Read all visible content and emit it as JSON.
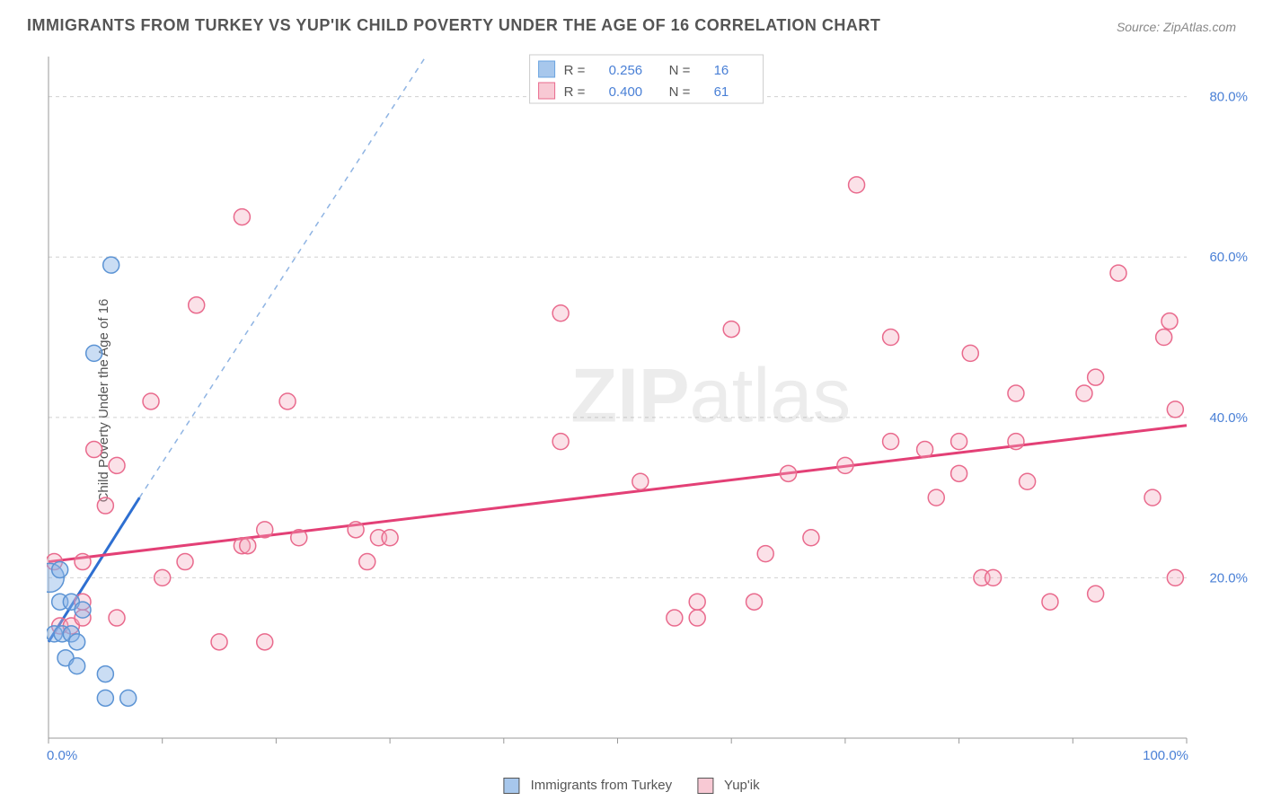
{
  "title": "IMMIGRANTS FROM TURKEY VS YUP'IK CHILD POVERTY UNDER THE AGE OF 16 CORRELATION CHART",
  "source": "Source: ZipAtlas.com",
  "y_axis_label": "Child Poverty Under the Age of 16",
  "watermark_bold": "ZIP",
  "watermark_light": "atlas",
  "chart": {
    "type": "scatter",
    "xlim": [
      0,
      100
    ],
    "ylim": [
      0,
      85
    ],
    "x_ticks": [
      0,
      100
    ],
    "x_tick_labels": [
      "0.0%",
      "100.0%"
    ],
    "x_minor_tick_step": 10,
    "y_ticks": [
      20,
      40,
      60,
      80
    ],
    "y_tick_labels": [
      "20.0%",
      "40.0%",
      "60.0%",
      "80.0%"
    ],
    "grid_color": "#d0d0d0",
    "axis_color": "#999999",
    "background_color": "#ffffff",
    "marker_radius": 9,
    "marker_radius_large": 16
  },
  "series": [
    {
      "name": "Immigrants from Turkey",
      "color_fill": "rgba(137,180,231,0.45)",
      "color_stroke": "#5b93d4",
      "R": "0.256",
      "N": "16",
      "regression": {
        "x1": 0,
        "y1": 12,
        "x2": 8,
        "y2": 30,
        "extrap_x2": 40,
        "extrap_y2": 100
      },
      "points": [
        {
          "x": 0.1,
          "y": 20,
          "r": 16
        },
        {
          "x": 1.0,
          "y": 21
        },
        {
          "x": 0.5,
          "y": 13
        },
        {
          "x": 1.2,
          "y": 13
        },
        {
          "x": 2.0,
          "y": 13
        },
        {
          "x": 2.5,
          "y": 12
        },
        {
          "x": 1.0,
          "y": 17
        },
        {
          "x": 2.0,
          "y": 17
        },
        {
          "x": 3.0,
          "y": 16
        },
        {
          "x": 1.5,
          "y": 10
        },
        {
          "x": 2.5,
          "y": 9
        },
        {
          "x": 5.0,
          "y": 8
        },
        {
          "x": 5.0,
          "y": 5
        },
        {
          "x": 7.0,
          "y": 5
        },
        {
          "x": 4.0,
          "y": 48
        },
        {
          "x": 5.5,
          "y": 59
        }
      ]
    },
    {
      "name": "Yup'ik",
      "color_fill": "rgba(244,170,190,0.35)",
      "color_stroke": "#e96a8d",
      "R": "0.400",
      "N": "61",
      "regression": {
        "x1": 0,
        "y1": 22,
        "x2": 100,
        "y2": 39
      },
      "points": [
        {
          "x": 0.5,
          "y": 22
        },
        {
          "x": 1.0,
          "y": 14
        },
        {
          "x": 2.0,
          "y": 14
        },
        {
          "x": 3.0,
          "y": 15
        },
        {
          "x": 3.0,
          "y": 17
        },
        {
          "x": 3.0,
          "y": 22
        },
        {
          "x": 4.0,
          "y": 36
        },
        {
          "x": 5.0,
          "y": 29
        },
        {
          "x": 6.0,
          "y": 34
        },
        {
          "x": 6.0,
          "y": 15
        },
        {
          "x": 9.0,
          "y": 42
        },
        {
          "x": 10.0,
          "y": 20
        },
        {
          "x": 12.0,
          "y": 22
        },
        {
          "x": 13.0,
          "y": 54
        },
        {
          "x": 15.0,
          "y": 12
        },
        {
          "x": 17.0,
          "y": 65
        },
        {
          "x": 17.0,
          "y": 24
        },
        {
          "x": 17.5,
          "y": 24
        },
        {
          "x": 19.0,
          "y": 12
        },
        {
          "x": 19.0,
          "y": 26
        },
        {
          "x": 21.0,
          "y": 42
        },
        {
          "x": 22.0,
          "y": 25
        },
        {
          "x": 27.0,
          "y": 26
        },
        {
          "x": 28.0,
          "y": 22
        },
        {
          "x": 29.0,
          "y": 25
        },
        {
          "x": 30.0,
          "y": 25
        },
        {
          "x": 45.0,
          "y": 37
        },
        {
          "x": 45.0,
          "y": 53
        },
        {
          "x": 52.0,
          "y": 32
        },
        {
          "x": 55.0,
          "y": 15
        },
        {
          "x": 57.0,
          "y": 15
        },
        {
          "x": 57.0,
          "y": 17
        },
        {
          "x": 60.0,
          "y": 51
        },
        {
          "x": 62.0,
          "y": 17
        },
        {
          "x": 63.0,
          "y": 23
        },
        {
          "x": 65.0,
          "y": 33
        },
        {
          "x": 67.0,
          "y": 25
        },
        {
          "x": 70.0,
          "y": 34
        },
        {
          "x": 71.0,
          "y": 69
        },
        {
          "x": 74.0,
          "y": 37
        },
        {
          "x": 74.0,
          "y": 50
        },
        {
          "x": 77.0,
          "y": 36
        },
        {
          "x": 78.0,
          "y": 30
        },
        {
          "x": 80.0,
          "y": 37
        },
        {
          "x": 80.0,
          "y": 33
        },
        {
          "x": 81.0,
          "y": 48
        },
        {
          "x": 82.0,
          "y": 20
        },
        {
          "x": 83.0,
          "y": 20
        },
        {
          "x": 85.0,
          "y": 37
        },
        {
          "x": 85.0,
          "y": 43
        },
        {
          "x": 86.0,
          "y": 32
        },
        {
          "x": 88.0,
          "y": 17
        },
        {
          "x": 91.0,
          "y": 43
        },
        {
          "x": 92.0,
          "y": 18
        },
        {
          "x": 92.0,
          "y": 45
        },
        {
          "x": 94.0,
          "y": 58
        },
        {
          "x": 97.0,
          "y": 30
        },
        {
          "x": 98.0,
          "y": 50
        },
        {
          "x": 98.5,
          "y": 52
        },
        {
          "x": 99.0,
          "y": 41
        },
        {
          "x": 99.0,
          "y": 20
        }
      ]
    }
  ],
  "stats_legend": {
    "R_label": "R  =",
    "N_label": "N  ="
  },
  "bottom_legend": [
    {
      "label": "Immigrants from Turkey",
      "swatch": "blue"
    },
    {
      "label": "Yup'ik",
      "swatch": "pink"
    }
  ]
}
